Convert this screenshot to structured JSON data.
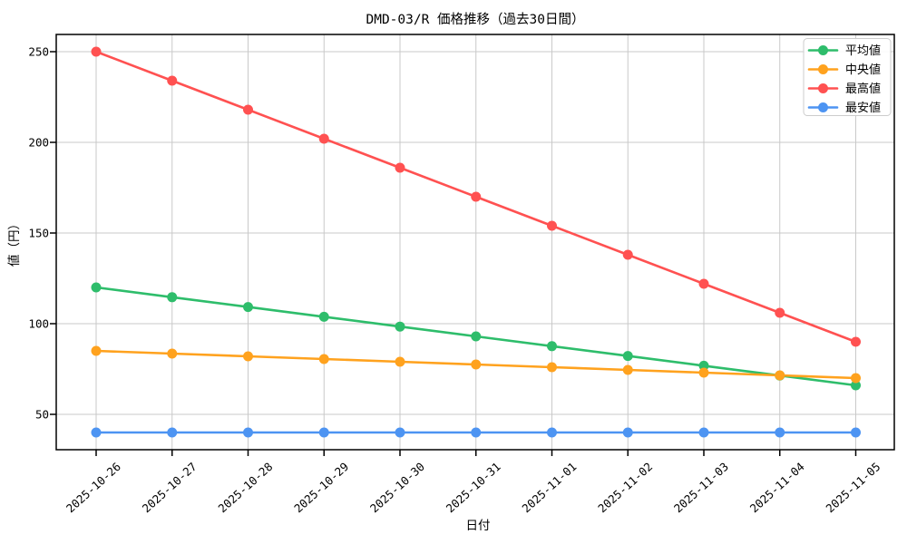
{
  "window": {
    "background_color": "#ffffff",
    "grid_color": "#c9c9c9",
    "spine_color": "#000000"
  },
  "chart_data": {
    "type": "line",
    "title": "DMD-03/R 価格推移（過去30日間）",
    "xlabel": "日付",
    "ylabel": "値（円）",
    "categories": [
      "2025-10-26",
      "2025-10-27",
      "2025-10-28",
      "2025-10-29",
      "2025-10-30",
      "2025-10-31",
      "2025-11-01",
      "2025-11-02",
      "2025-11-03",
      "2025-11-04",
      "2025-11-05"
    ],
    "yticks": [
      50,
      100,
      150,
      200,
      250
    ],
    "ylim": [
      30.5,
      259.5
    ],
    "grid": true,
    "legend_position": "upper-right",
    "series": [
      {
        "key": "average",
        "name": "平均値",
        "color": "#2ebd6b",
        "values": [
          120,
          114.6,
          109.2,
          103.8,
          98.4,
          93,
          87.6,
          82.2,
          76.8,
          71.4,
          66
        ]
      },
      {
        "key": "median",
        "name": "中央値",
        "color": "#ffa21e",
        "values": [
          85,
          83.5,
          82,
          80.5,
          79,
          77.5,
          76,
          74.5,
          73,
          71.5,
          70
        ]
      },
      {
        "key": "max",
        "name": "最高値",
        "color": "#ff5151",
        "values": [
          250,
          234,
          218,
          202,
          186,
          170,
          154,
          138,
          122,
          106,
          90
        ]
      },
      {
        "key": "min",
        "name": "最安値",
        "color": "#4d94f2",
        "values": [
          40,
          40,
          40,
          40,
          40,
          40,
          40,
          40,
          40,
          40,
          40
        ]
      }
    ]
  }
}
